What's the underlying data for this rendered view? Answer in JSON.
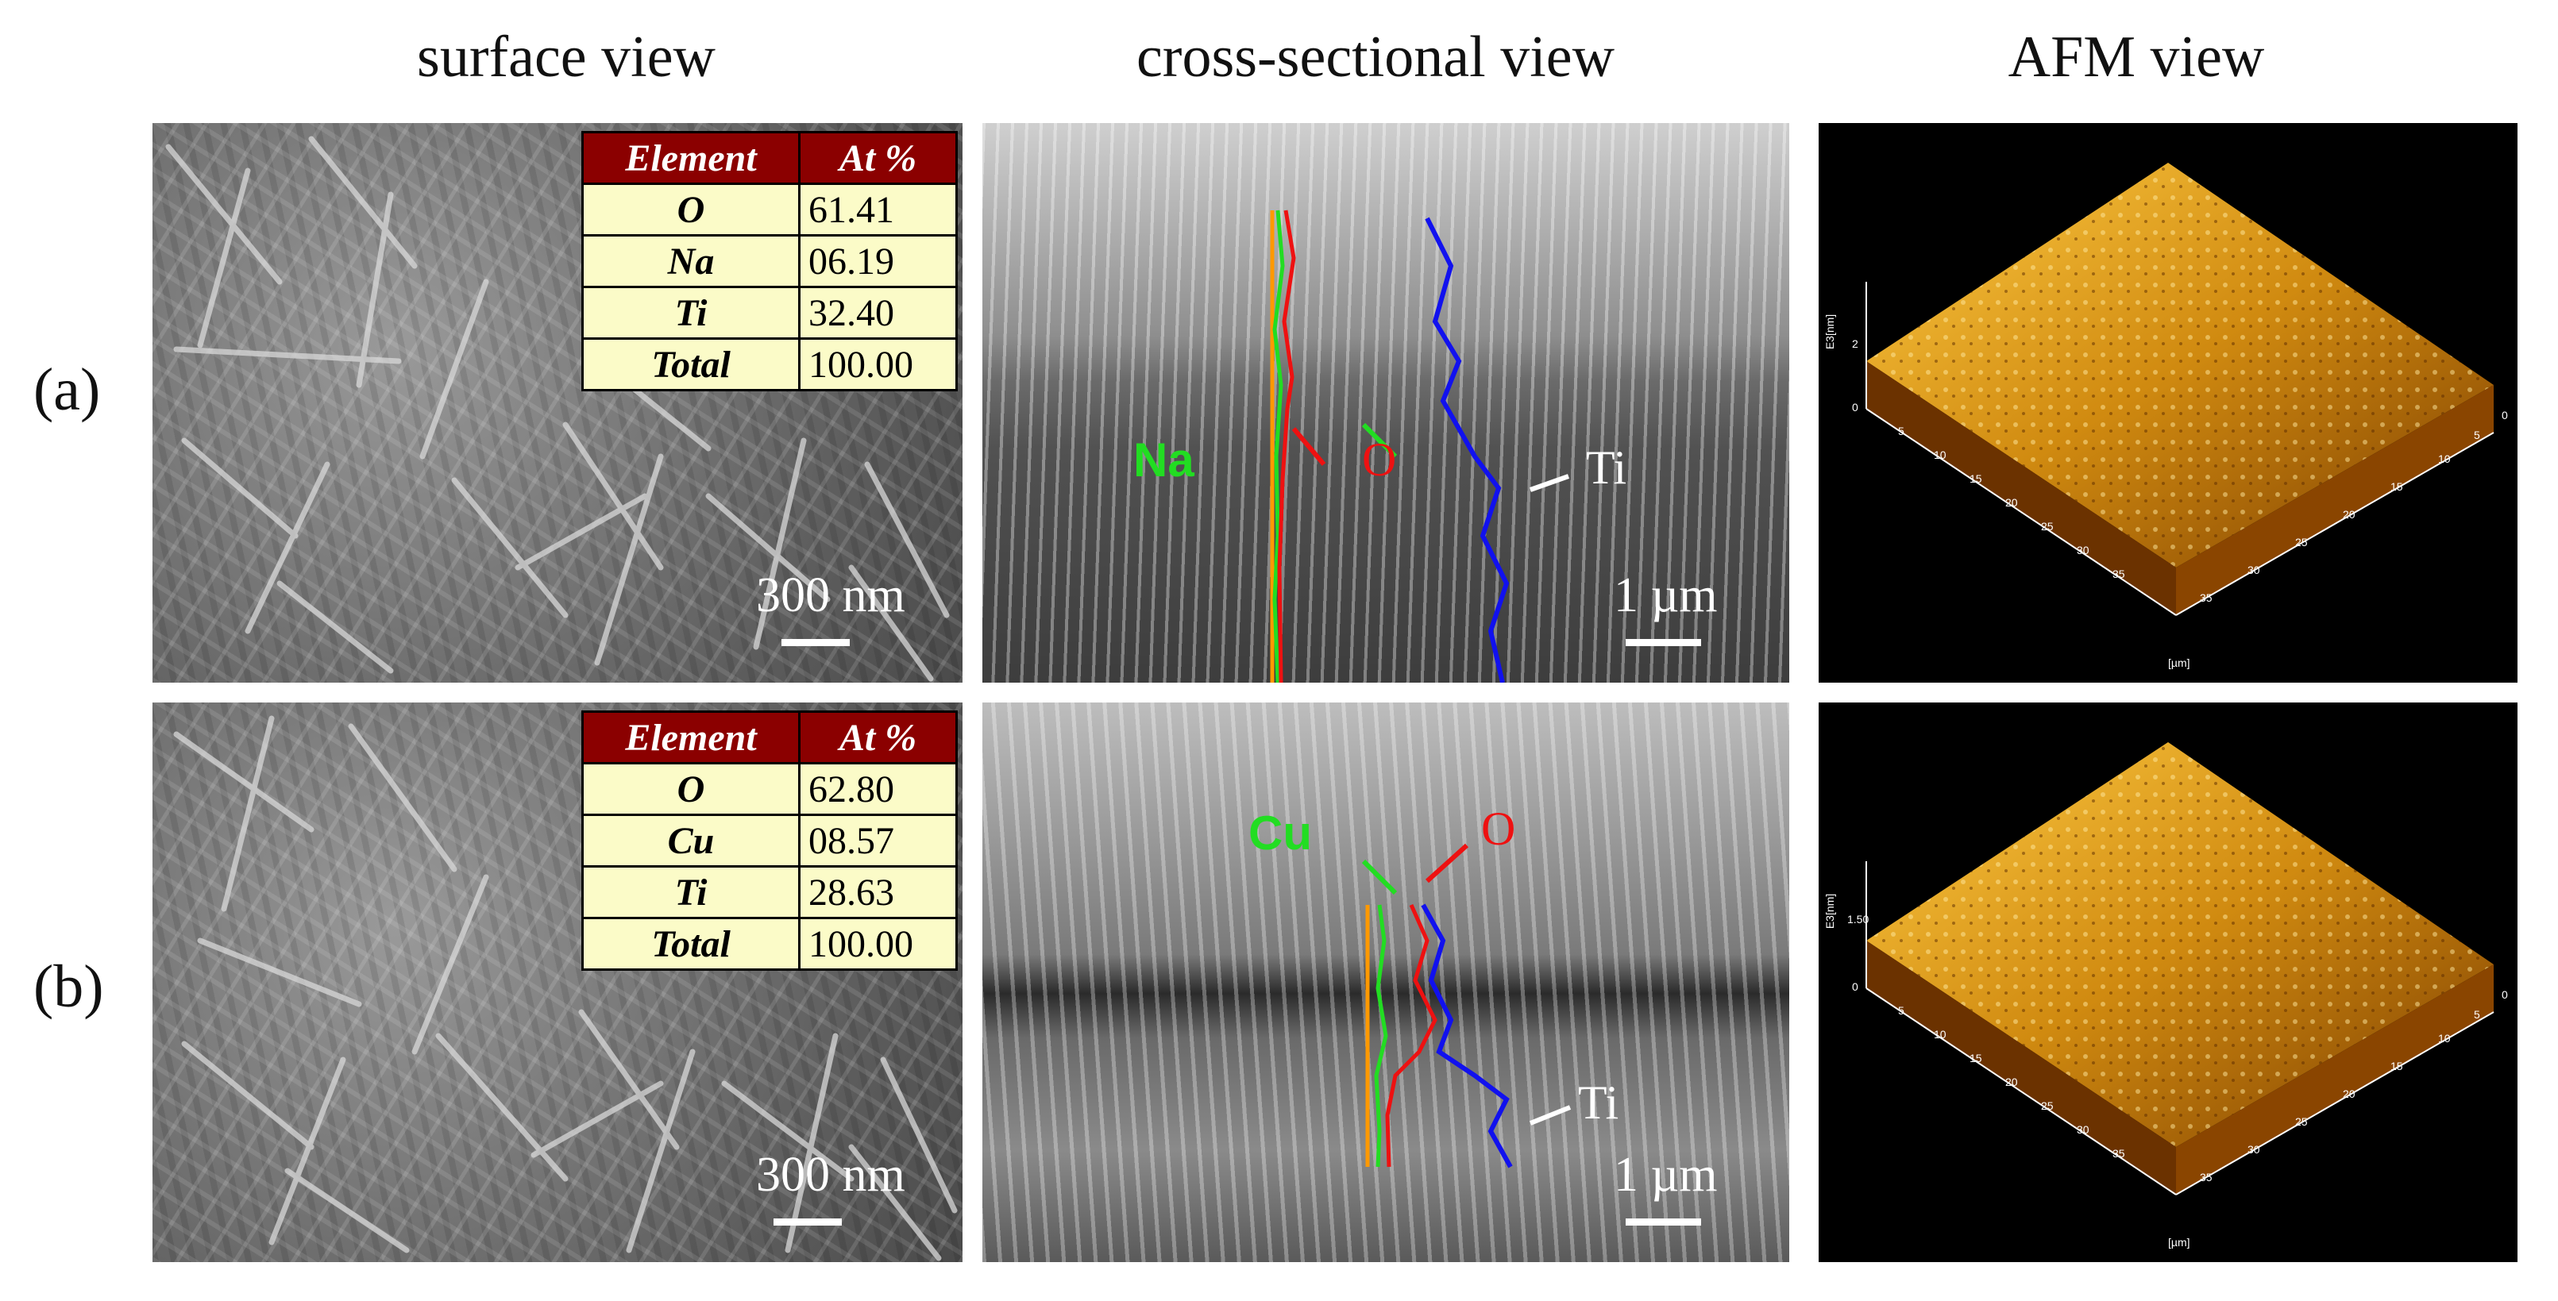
{
  "columns": {
    "surface": "surface view",
    "cross": "cross-sectional view",
    "afm": "AFM view"
  },
  "rows": {
    "a": {
      "label": "(a)",
      "table": {
        "header": [
          "Element",
          "At %"
        ],
        "rows": [
          {
            "element": "O",
            "value": "61.41"
          },
          {
            "element": "Na",
            "value": "06.19"
          },
          {
            "element": "Ti",
            "value": "32.40"
          },
          {
            "element": "Total",
            "value": "100.00"
          }
        ]
      },
      "surface_scale": "300 nm",
      "cross_scale": "1 µm",
      "labels": {
        "green": "Na",
        "red": "O",
        "white": "Ti"
      },
      "afm_z_label": "E3[nm]",
      "afm_z_tick": "2",
      "afm_z_zero": "0"
    },
    "b": {
      "label": "(b)",
      "table": {
        "header": [
          "Element",
          "At %"
        ],
        "rows": [
          {
            "element": "O",
            "value": "62.80"
          },
          {
            "element": "Cu",
            "value": "08.57"
          },
          {
            "element": "Ti",
            "value": "28.63"
          },
          {
            "element": "Total",
            "value": "100.00"
          }
        ]
      },
      "surface_scale": "300 nm",
      "cross_scale": "1 µm",
      "labels": {
        "green": "Cu",
        "red": "O",
        "white": "Ti"
      },
      "afm_z_label": "E3[nm]",
      "afm_z_tick": "1.50",
      "afm_z_zero": "0"
    }
  },
  "afm_axis": {
    "ticks": [
      "0",
      "5",
      "10",
      "15",
      "20",
      "25",
      "30",
      "35"
    ],
    "unit": "[µm]"
  },
  "colors": {
    "table_header": "#8b0000",
    "table_cell": "#fbfbc8",
    "na_cu_line": "#22dd22",
    "o_line": "#ee1111",
    "ti_line": "#1111ee",
    "afm_surface": "#c8860b"
  }
}
